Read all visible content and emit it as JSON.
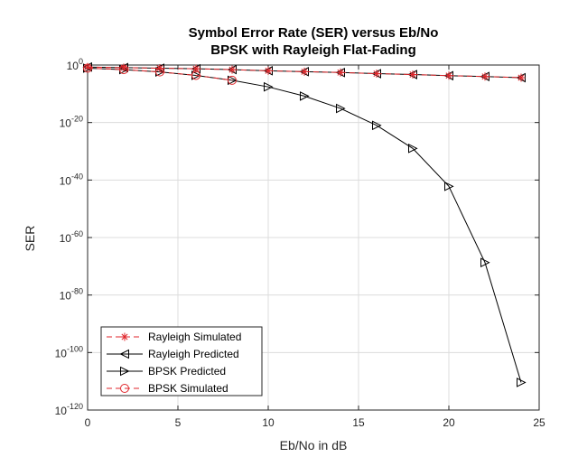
{
  "chart_data": {
    "type": "line",
    "title": "Symbol Error Rate (SER) versus Eb/No",
    "subtitle": "BPSK with Rayleigh Flat-Fading",
    "xlabel": "Eb/No in dB",
    "ylabel": "SER",
    "xlim": [
      0,
      25
    ],
    "ylim_exponent": [
      -120,
      0
    ],
    "yscale": "log",
    "grid": true,
    "legend_position": "bottom-left",
    "x_ticks": [
      "0",
      "5",
      "10",
      "15",
      "20",
      "25"
    ],
    "y_ticks": [
      {
        "base": "10",
        "exp": "0"
      },
      {
        "base": "10",
        "exp": "-20"
      },
      {
        "base": "10",
        "exp": "-40"
      },
      {
        "base": "10",
        "exp": "-60"
      },
      {
        "base": "10",
        "exp": "-80"
      },
      {
        "base": "10",
        "exp": "-100"
      },
      {
        "base": "10",
        "exp": "-120"
      }
    ],
    "series": [
      {
        "name": "Rayleigh Simulated",
        "color": "#e0262b",
        "dash": true,
        "marker": "asterisk",
        "x": [
          0,
          2,
          4,
          6,
          8,
          10,
          12,
          14,
          16,
          18,
          20,
          22,
          24
        ],
        "y_exponent": [
          -0.7,
          -0.9,
          -1.1,
          -1.3,
          -1.6,
          -2.0,
          -2.3,
          -2.6,
          -3.0,
          -3.3,
          -3.7,
          -4.0,
          -4.4
        ]
      },
      {
        "name": "Rayleigh Predicted",
        "color": "#000000",
        "dash": false,
        "marker": "triangle-left",
        "x": [
          0,
          2,
          4,
          6,
          8,
          10,
          12,
          14,
          16,
          18,
          20,
          22,
          24
        ],
        "y_exponent": [
          -0.7,
          -0.9,
          -1.1,
          -1.3,
          -1.6,
          -2.0,
          -2.3,
          -2.6,
          -3.0,
          -3.3,
          -3.7,
          -4.0,
          -4.4
        ]
      },
      {
        "name": "BPSK Predicted",
        "color": "#000000",
        "dash": false,
        "marker": "triangle-right",
        "x": [
          0,
          2,
          4,
          6,
          8,
          10,
          12,
          14,
          16,
          18,
          20,
          22,
          24
        ],
        "y_exponent": [
          -1.1,
          -1.6,
          -2.4,
          -3.6,
          -5.3,
          -7.6,
          -10.8,
          -15.1,
          -21.0,
          -29.0,
          -42.2,
          -68.7,
          -110.4
        ]
      },
      {
        "name": "BPSK Simulated",
        "color": "#e0262b",
        "dash": true,
        "marker": "circle",
        "x": [
          0,
          2,
          4,
          6,
          8
        ],
        "y_exponent": [
          -1.1,
          -1.6,
          -2.4,
          -3.6,
          -5.3
        ]
      }
    ]
  }
}
